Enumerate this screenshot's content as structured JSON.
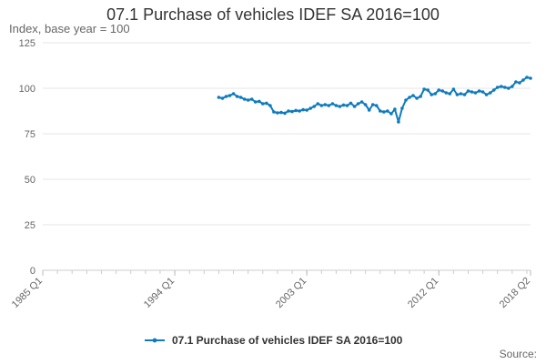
{
  "chart_data": {
    "type": "line",
    "title": "07.1 Purchase of vehicles IDEF SA 2016=100",
    "ylabel": "Index, base year = 100",
    "xlabel": "",
    "ylim": [
      0,
      125
    ],
    "yticks": [
      0,
      25,
      50,
      75,
      100,
      125
    ],
    "xticks": [
      "1985 Q1",
      "1994 Q1",
      "2003 Q1",
      "2012 Q1",
      "2018 Q2"
    ],
    "grid": "horizontal",
    "legend_position": "bottom",
    "line_color": "#0f7bbd",
    "series": [
      {
        "name": "07.1 Purchase of vehicles IDEF SA 2016=100",
        "x": [
          "1997 Q1",
          "1997 Q2",
          "1997 Q3",
          "1997 Q4",
          "1998 Q1",
          "1998 Q2",
          "1998 Q3",
          "1998 Q4",
          "1999 Q1",
          "1999 Q2",
          "1999 Q3",
          "1999 Q4",
          "2000 Q1",
          "2000 Q2",
          "2000 Q3",
          "2000 Q4",
          "2001 Q1",
          "2001 Q2",
          "2001 Q3",
          "2001 Q4",
          "2002 Q1",
          "2002 Q2",
          "2002 Q3",
          "2002 Q4",
          "2003 Q1",
          "2003 Q2",
          "2003 Q3",
          "2003 Q4",
          "2004 Q1",
          "2004 Q2",
          "2004 Q3",
          "2004 Q4",
          "2005 Q1",
          "2005 Q2",
          "2005 Q3",
          "2005 Q4",
          "2006 Q1",
          "2006 Q2",
          "2006 Q3",
          "2006 Q4",
          "2007 Q1",
          "2007 Q2",
          "2007 Q3",
          "2007 Q4",
          "2008 Q1",
          "2008 Q2",
          "2008 Q3",
          "2008 Q4",
          "2009 Q1",
          "2009 Q2",
          "2009 Q3",
          "2009 Q4",
          "2010 Q1",
          "2010 Q2",
          "2010 Q3",
          "2010 Q4",
          "2011 Q1",
          "2011 Q2",
          "2011 Q3",
          "2011 Q4",
          "2012 Q1",
          "2012 Q2",
          "2012 Q3",
          "2012 Q4",
          "2013 Q1",
          "2013 Q2",
          "2013 Q3",
          "2013 Q4",
          "2014 Q1",
          "2014 Q2",
          "2014 Q3",
          "2014 Q4",
          "2015 Q1",
          "2015 Q2",
          "2015 Q3",
          "2015 Q4",
          "2016 Q1",
          "2016 Q2",
          "2016 Q3",
          "2016 Q4",
          "2017 Q1",
          "2017 Q2",
          "2017 Q3",
          "2017 Q4",
          "2018 Q1",
          "2018 Q2"
        ],
        "values": [
          95,
          94.5,
          95.5,
          96,
          97,
          95.5,
          95,
          94,
          93.5,
          94,
          92.5,
          92.8,
          91.5,
          91.8,
          90.5,
          87,
          86.5,
          86.7,
          86.3,
          87.5,
          87.2,
          87.8,
          87.5,
          88.2,
          88,
          89,
          90,
          91.5,
          90.5,
          91,
          90.5,
          91.5,
          90.5,
          90,
          90.8,
          90.5,
          91.8,
          90,
          91.5,
          92.5,
          91,
          88,
          91,
          90.5,
          87.5,
          87,
          87.5,
          86,
          88.5,
          81.5,
          89,
          93.5,
          95,
          96,
          94.5,
          95.5,
          99.5,
          99,
          96.5,
          97,
          99,
          98.5,
          97.5,
          97,
          99.5,
          96.5,
          97,
          96.5,
          98.5,
          98,
          97.5,
          98.5,
          98,
          96.5,
          97.5,
          99,
          100.5,
          101,
          100.5,
          100,
          101,
          103.5,
          103,
          104.5,
          106,
          105.5
        ]
      }
    ]
  },
  "source_label": "Source:"
}
